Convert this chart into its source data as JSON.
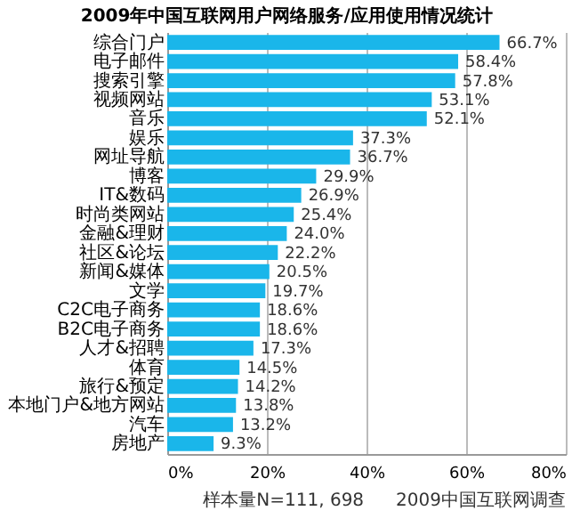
{
  "chart_data": {
    "type": "bar",
    "orientation": "horizontal",
    "title": "2009年中国互联网用户网络服务/应用使用情况统计",
    "categories": [
      "综合门户",
      "电子邮件",
      "搜索引擎",
      "视频网站",
      "音乐",
      "娱乐",
      "网址导航",
      "博客",
      "IT&数码",
      "时尚类网站",
      "金融&理财",
      "社区&论坛",
      "新闻&媒体",
      "文学",
      "C2C电子商务",
      "B2C电子商务",
      "人才&招聘",
      "体育",
      "旅行&预定",
      "本地门户&地方网站",
      "汽车",
      "房地产"
    ],
    "values": [
      66.7,
      58.4,
      57.8,
      53.1,
      52.1,
      37.3,
      36.7,
      29.9,
      26.9,
      25.4,
      24.0,
      22.2,
      20.5,
      19.7,
      18.6,
      18.6,
      17.3,
      14.5,
      14.2,
      13.8,
      13.2,
      9.3
    ],
    "value_labels": [
      "66.7%",
      "58.4%",
      "57.8%",
      "53.1%",
      "52.1%",
      "37.3%",
      "36.7%",
      "29.9%",
      "26.9%",
      "25.4%",
      "24.0%",
      "22.2%",
      "20.5%",
      "19.7%",
      "18.6%",
      "18.6%",
      "17.3%",
      "14.5%",
      "14.2%",
      "13.8%",
      "13.2%",
      "9.3%"
    ],
    "color": "#1ab6ea",
    "xlim": [
      0,
      80
    ],
    "xticks": [
      {
        "value": 0,
        "label": "0%"
      },
      {
        "value": 20,
        "label": "20%"
      },
      {
        "value": 40,
        "label": "40%"
      },
      {
        "value": 60,
        "label": "60%"
      },
      {
        "value": 80,
        "label": "80%"
      }
    ],
    "grid": "x",
    "annotations": [
      "样本量N=111, 698",
      "2009中国互联网调查"
    ]
  }
}
